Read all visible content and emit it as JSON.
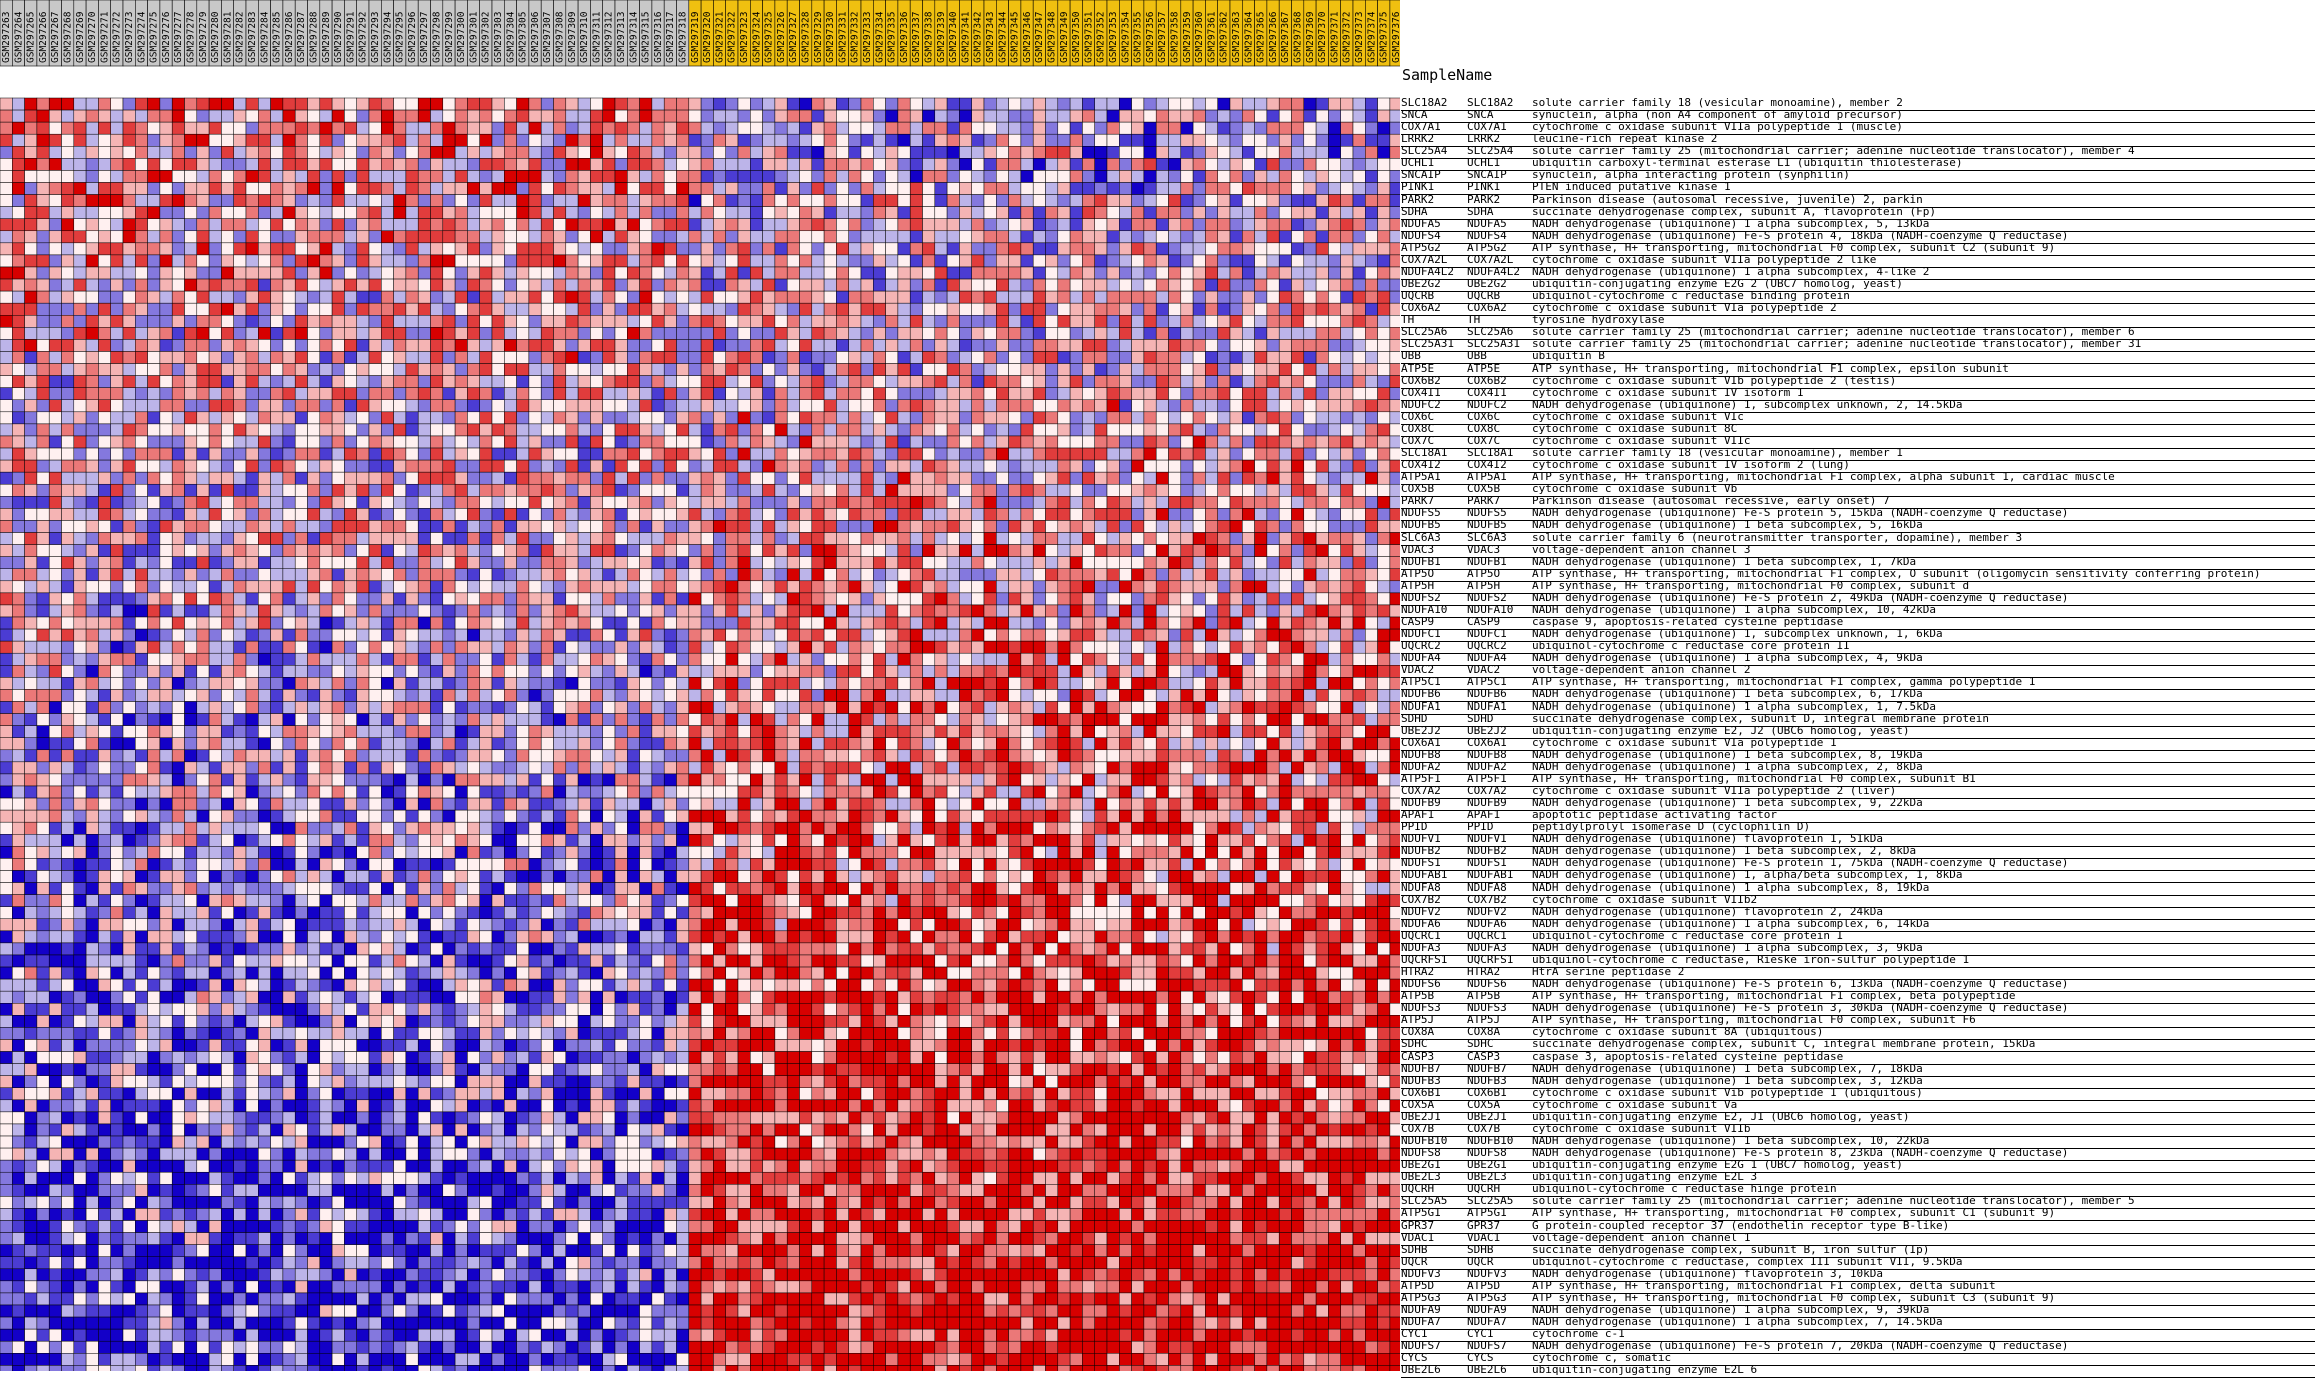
{
  "chart_data": {
    "type": "heatmap",
    "header_title": "SampleName",
    "group_colors": {
      "group1": "#c8c8c8",
      "group2": "#f0c010"
    },
    "color_scale": {
      "low": "#1a00c8",
      "mid": "#f4f0f4",
      "high": "#d80000"
    },
    "samples": [
      "GSM297263",
      "GSM297264",
      "GSM297265",
      "GSM297266",
      "GSM297267",
      "GSM297268",
      "GSM297269",
      "GSM297270",
      "GSM297271",
      "GSM297272",
      "GSM297273",
      "GSM297274",
      "GSM297275",
      "GSM297276",
      "GSM297277",
      "GSM297278",
      "GSM297279",
      "GSM297280",
      "GSM297281",
      "GSM297282",
      "GSM297283",
      "GSM297284",
      "GSM297285",
      "GSM297286",
      "GSM297287",
      "GSM297288",
      "GSM297289",
      "GSM297290",
      "GSM297291",
      "GSM297292",
      "GSM297293",
      "GSM297294",
      "GSM297295",
      "GSM297296",
      "GSM297297",
      "GSM297298",
      "GSM297299",
      "GSM297300",
      "GSM297301",
      "GSM297302",
      "GSM297303",
      "GSM297304",
      "GSM297305",
      "GSM297306",
      "GSM297307",
      "GSM297308",
      "GSM297309",
      "GSM297310",
      "GSM297311",
      "GSM297312",
      "GSM297313",
      "GSM297314",
      "GSM297315",
      "GSM297316",
      "GSM297317",
      "GSM297318",
      "GSM297319",
      "GSM297320",
      "GSM297321",
      "GSM297322",
      "GSM297323",
      "GSM297324",
      "GSM297325",
      "GSM297326",
      "GSM297327",
      "GSM297328",
      "GSM297329",
      "GSM297330",
      "GSM297331",
      "GSM297332",
      "GSM297333",
      "GSM297334",
      "GSM297335",
      "GSM297336",
      "GSM297337",
      "GSM297338",
      "GSM297339",
      "GSM297340",
      "GSM297341",
      "GSM297342",
      "GSM297343",
      "GSM297344",
      "GSM297345",
      "GSM297346",
      "GSM297347",
      "GSM297348",
      "GSM297349",
      "GSM297350",
      "GSM297351",
      "GSM297352",
      "GSM297353",
      "GSM297354",
      "GSM297355",
      "GSM297356",
      "GSM297357",
      "GSM297358",
      "GSM297359",
      "GSM297360",
      "GSM297361",
      "GSM297362",
      "GSM297363",
      "GSM297364",
      "GSM297365",
      "GSM297366",
      "GSM297367",
      "GSM297368",
      "GSM297369",
      "GSM297370",
      "GSM297371",
      "GSM297372",
      "GSM297373",
      "GSM297374",
      "GSM297375",
      "GSM297376"
    ],
    "group_split_index": 56,
    "genes": [
      [
        "SLC18A2",
        "SLC18A2",
        "solute carrier family 18 (vesicular monoamine), member 2"
      ],
      [
        "SNCA",
        "SNCA",
        "synuclein, alpha (non A4 component of amyloid precursor)"
      ],
      [
        "COX7A1",
        "COX7A1",
        "cytochrome c oxidase subunit VIIa polypeptide 1 (muscle)"
      ],
      [
        "LRRK2",
        "LRRK2",
        "leucine-rich repeat kinase 2"
      ],
      [
        "SLC25A4",
        "SLC25A4",
        "solute carrier family 25 (mitochondrial carrier; adenine nucleotide translocator), member 4"
      ],
      [
        "UCHL1",
        "UCHL1",
        "ubiquitin carboxyl-terminal esterase L1 (ubiquitin thiolesterase)"
      ],
      [
        "SNCAIP",
        "SNCAIP",
        "synuclein, alpha interacting protein (synphilin)"
      ],
      [
        "PINK1",
        "PINK1",
        "PTEN induced putative kinase 1"
      ],
      [
        "PARK2",
        "PARK2",
        "Parkinson disease (autosomal recessive, juvenile) 2, parkin"
      ],
      [
        "SDHA",
        "SDHA",
        "succinate dehydrogenase complex, subunit A, flavoprotein (Fp)"
      ],
      [
        "NDUFA5",
        "NDUFA5",
        "NADH dehydrogenase (ubiquinone) 1 alpha subcomplex, 5, 13kDa"
      ],
      [
        "NDUFS4",
        "NDUFS4",
        "NADH dehydrogenase (ubiquinone) Fe-S protein 4, 18kDa (NADH-coenzyme Q reductase)"
      ],
      [
        "ATP5G2",
        "ATP5G2",
        "ATP synthase, H+ transporting, mitochondrial F0 complex, subunit C2 (subunit 9)"
      ],
      [
        "COX7A2L",
        "COX7A2L",
        "cytochrome c oxidase subunit VIIa polypeptide 2 like"
      ],
      [
        "NDUFA4L2",
        "NDUFA4L2",
        "NADH dehydrogenase (ubiquinone) 1 alpha subcomplex, 4-like 2"
      ],
      [
        "UBE2G2",
        "UBE2G2",
        "ubiquitin-conjugating enzyme E2G 2 (UBC7 homolog, yeast)"
      ],
      [
        "UQCRB",
        "UQCRB",
        "ubiquinol-cytochrome c reductase binding protein"
      ],
      [
        "COX6A2",
        "COX6A2",
        "cytochrome c oxidase subunit VIa polypeptide 2"
      ],
      [
        "TH",
        "TH",
        "tyrosine hydroxylase"
      ],
      [
        "SLC25A6",
        "SLC25A6",
        "solute carrier family 25 (mitochondrial carrier; adenine nucleotide translocator), member 6"
      ],
      [
        "SLC25A31",
        "SLC25A31",
        "solute carrier family 25 (mitochondrial carrier; adenine nucleotide translocator), member 31"
      ],
      [
        "UBB",
        "UBB",
        "ubiquitin B"
      ],
      [
        "ATP5E",
        "ATP5E",
        "ATP synthase, H+ transporting, mitochondrial F1 complex, epsilon subunit"
      ],
      [
        "COX6B2",
        "COX6B2",
        "cytochrome c oxidase subunit VIb polypeptide 2 (testis)"
      ],
      [
        "COX4I1",
        "COX4I1",
        "cytochrome c oxidase subunit IV isoform 1"
      ],
      [
        "NDUFC2",
        "NDUFC2",
        "NADH dehydrogenase (ubiquinone) 1, subcomplex unknown, 2, 14.5kDa"
      ],
      [
        "COX6C",
        "COX6C",
        "cytochrome c oxidase subunit VIc"
      ],
      [
        "COX8C",
        "COX8C",
        "cytochrome c oxidase subunit 8C"
      ],
      [
        "COX7C",
        "COX7C",
        "cytochrome c oxidase subunit VIIc"
      ],
      [
        "SLC18A1",
        "SLC18A1",
        "solute carrier family 18 (vesicular monoamine), member 1"
      ],
      [
        "COX4I2",
        "COX4I2",
        "cytochrome c oxidase subunit IV isoform 2 (lung)"
      ],
      [
        "ATP5A1",
        "ATP5A1",
        "ATP synthase, H+ transporting, mitochondrial F1 complex, alpha subunit 1, cardiac muscle"
      ],
      [
        "COX5B",
        "COX5B",
        "cytochrome c oxidase subunit Vb"
      ],
      [
        "PARK7",
        "PARK7",
        "Parkinson disease (autosomal recessive, early onset) 7"
      ],
      [
        "NDUFS5",
        "NDUFS5",
        "NADH dehydrogenase (ubiquinone) Fe-S protein 5, 15kDa (NADH-coenzyme Q reductase)"
      ],
      [
        "NDUFB5",
        "NDUFB5",
        "NADH dehydrogenase (ubiquinone) 1 beta subcomplex, 5, 16kDa"
      ],
      [
        "SLC6A3",
        "SLC6A3",
        "solute carrier family 6 (neurotransmitter transporter, dopamine), member 3"
      ],
      [
        "VDAC3",
        "VDAC3",
        "voltage-dependent anion channel 3"
      ],
      [
        "NDUFB1",
        "NDUFB1",
        "NADH dehydrogenase (ubiquinone) 1 beta subcomplex, 1, 7kDa"
      ],
      [
        "ATP5O",
        "ATP5O",
        "ATP synthase, H+ transporting, mitochondrial F1 complex, O subunit (oligomycin sensitivity conferring protein)"
      ],
      [
        "ATP5H",
        "ATP5H",
        "ATP synthase, H+ transporting, mitochondrial F0 complex, subunit d"
      ],
      [
        "NDUFS2",
        "NDUFS2",
        "NADH dehydrogenase (ubiquinone) Fe-S protein 2, 49kDa (NADH-coenzyme Q reductase)"
      ],
      [
        "NDUFA10",
        "NDUFA10",
        "NADH dehydrogenase (ubiquinone) 1 alpha subcomplex, 10, 42kDa"
      ],
      [
        "CASP9",
        "CASP9",
        "caspase 9, apoptosis-related cysteine peptidase"
      ],
      [
        "NDUFC1",
        "NDUFC1",
        "NADH dehydrogenase (ubiquinone) 1, subcomplex unknown, 1, 6kDa"
      ],
      [
        "UQCRC2",
        "UQCRC2",
        "ubiquinol-cytochrome c reductase core protein II"
      ],
      [
        "NDUFA4",
        "NDUFA4",
        "NADH dehydrogenase (ubiquinone) 1 alpha subcomplex, 4, 9kDa"
      ],
      [
        "VDAC2",
        "VDAC2",
        "voltage-dependent anion channel 2"
      ],
      [
        "ATP5C1",
        "ATP5C1",
        "ATP synthase, H+ transporting, mitochondrial F1 complex, gamma polypeptide 1"
      ],
      [
        "NDUFB6",
        "NDUFB6",
        "NADH dehydrogenase (ubiquinone) 1 beta subcomplex, 6, 17kDa"
      ],
      [
        "NDUFA1",
        "NDUFA1",
        "NADH dehydrogenase (ubiquinone) 1 alpha subcomplex, 1, 7.5kDa"
      ],
      [
        "SDHD",
        "SDHD",
        "succinate dehydrogenase complex, subunit D, integral membrane protein"
      ],
      [
        "UBE2J2",
        "UBE2J2",
        "ubiquitin-conjugating enzyme E2, J2 (UBC6 homolog, yeast)"
      ],
      [
        "COX6A1",
        "COX6A1",
        "cytochrome c oxidase subunit VIa polypeptide 1"
      ],
      [
        "NDUFB8",
        "NDUFB8",
        "NADH dehydrogenase (ubiquinone) 1 beta subcomplex, 8, 19kDa"
      ],
      [
        "NDUFA2",
        "NDUFA2",
        "NADH dehydrogenase (ubiquinone) 1 alpha subcomplex, 2, 8kDa"
      ],
      [
        "ATP5F1",
        "ATP5F1",
        "ATP synthase, H+ transporting, mitochondrial F0 complex, subunit B1"
      ],
      [
        "COX7A2",
        "COX7A2",
        "cytochrome c oxidase subunit VIIa polypeptide 2 (liver)"
      ],
      [
        "NDUFB9",
        "NDUFB9",
        "NADH dehydrogenase (ubiquinone) 1 beta subcomplex, 9, 22kDa"
      ],
      [
        "APAF1",
        "APAF1",
        "apoptotic peptidase activating factor"
      ],
      [
        "PPID",
        "PPID",
        "peptidylprolyl isomerase D (cyclophilin D)"
      ],
      [
        "NDUFV1",
        "NDUFV1",
        "NADH dehydrogenase (ubiquinone) flavoprotein 1, 51kDa"
      ],
      [
        "NDUFB2",
        "NDUFB2",
        "NADH dehydrogenase (ubiquinone) 1 beta subcomplex, 2, 8kDa"
      ],
      [
        "NDUFS1",
        "NDUFS1",
        "NADH dehydrogenase (ubiquinone) Fe-S protein 1, 75kDa (NADH-coenzyme Q reductase)"
      ],
      [
        "NDUFAB1",
        "NDUFAB1",
        "NADH dehydrogenase (ubiquinone) 1, alpha/beta subcomplex, 1, 8kDa"
      ],
      [
        "NDUFA8",
        "NDUFA8",
        "NADH dehydrogenase (ubiquinone) 1 alpha subcomplex, 8, 19kDa"
      ],
      [
        "COX7B2",
        "COX7B2",
        "cytochrome c oxidase subunit VIIb2"
      ],
      [
        "NDUFV2",
        "NDUFV2",
        "NADH dehydrogenase (ubiquinone) flavoprotein 2, 24kDa"
      ],
      [
        "NDUFA6",
        "NDUFA6",
        "NADH dehydrogenase (ubiquinone) 1 alpha subcomplex, 6, 14kDa"
      ],
      [
        "UQCRC1",
        "UQCRC1",
        "ubiquinol-cytochrome c reductase core protein I"
      ],
      [
        "NDUFA3",
        "NDUFA3",
        "NADH dehydrogenase (ubiquinone) 1 alpha subcomplex, 3, 9kDa"
      ],
      [
        "UQCRFS1",
        "UQCRFS1",
        "ubiquinol-cytochrome c reductase, Rieske iron-sulfur polypeptide 1"
      ],
      [
        "HTRA2",
        "HTRA2",
        "HtrA serine peptidase 2"
      ],
      [
        "NDUFS6",
        "NDUFS6",
        "NADH dehydrogenase (ubiquinone) Fe-S protein 6, 13kDa (NADH-coenzyme Q reductase)"
      ],
      [
        "ATP5B",
        "ATP5B",
        "ATP synthase, H+ transporting, mitochondrial F1 complex, beta polypeptide"
      ],
      [
        "NDUFS3",
        "NDUFS3",
        "NADH dehydrogenase (ubiquinone) Fe-S protein 3, 30kDa (NADH-coenzyme Q reductase)"
      ],
      [
        "ATP5J",
        "ATP5J",
        "ATP synthase, H+ transporting, mitochondrial F0 complex, subunit F6"
      ],
      [
        "COX8A",
        "COX8A",
        "cytochrome c oxidase subunit 8A (ubiquitous)"
      ],
      [
        "SDHC",
        "SDHC",
        "succinate dehydrogenase complex, subunit C, integral membrane protein, 15kDa"
      ],
      [
        "CASP3",
        "CASP3",
        "caspase 3, apoptosis-related cysteine peptidase"
      ],
      [
        "NDUFB7",
        "NDUFB7",
        "NADH dehydrogenase (ubiquinone) 1 beta subcomplex, 7, 18kDa"
      ],
      [
        "NDUFB3",
        "NDUFB3",
        "NADH dehydrogenase (ubiquinone) 1 beta subcomplex, 3, 12kDa"
      ],
      [
        "COX6B1",
        "COX6B1",
        "cytochrome c oxidase subunit Vib polypeptide 1 (ubiquitous)"
      ],
      [
        "COX5A",
        "COX5A",
        "cytochrome c oxidase subunit Va"
      ],
      [
        "UBE2J1",
        "UBE2J1",
        "ubiquitin-conjugating enzyme E2, J1 (UBC6 homolog, yeast)"
      ],
      [
        "COX7B",
        "COX7B",
        "cytochrome c oxidase subunit VIIb"
      ],
      [
        "NDUFB10",
        "NDUFB10",
        "NADH dehydrogenase (ubiquinone) 1 beta subcomplex, 10, 22kDa"
      ],
      [
        "NDUFS8",
        "NDUFS8",
        "NADH dehydrogenase (ubiquinone) Fe-S protein 8, 23kDa (NADH-coenzyme Q reductase)"
      ],
      [
        "UBE2G1",
        "UBE2G1",
        "ubiquitin-conjugating enzyme E2G 1 (UBC7 homolog, yeast)"
      ],
      [
        "UBE2L3",
        "UBE2L3",
        "ubiquitin-conjugating enzyme E2L 3"
      ],
      [
        "UQCRH",
        "UQCRH",
        "ubiquinol-cytochrome c reductase hinge protein"
      ],
      [
        "SLC25A5",
        "SLC25A5",
        "solute carrier family 25 (mitochondrial carrier; adenine nucleotide translocator), member 5"
      ],
      [
        "ATP5G1",
        "ATP5G1",
        "ATP synthase, H+ transporting, mitochondrial F0 complex, subunit C1 (subunit 9)"
      ],
      [
        "GPR37",
        "GPR37",
        "G protein-coupled receptor 37 (endothelin receptor type B-like)"
      ],
      [
        "VDAC1",
        "VDAC1",
        "voltage-dependent anion channel 1"
      ],
      [
        "SDHB",
        "SDHB",
        "succinate dehydrogenase complex, subunit B, iron sulfur (Ip)"
      ],
      [
        "UQCR",
        "UQCR",
        "ubiquinol-cytochrome c reductase, complex III subunit VII, 9.5kDa"
      ],
      [
        "NDUFV3",
        "NDUFV3",
        "NADH dehydrogenase (ubiquinone) flavoprotein 3, 10kDa"
      ],
      [
        "ATP5D",
        "ATP5D",
        "ATP synthase, H+ transporting, mitochondrial F1 complex, delta subunit"
      ],
      [
        "ATP5G3",
        "ATP5G3",
        "ATP synthase, H+ transporting, mitochondrial F0 complex, subunit C3 (subunit 9)"
      ],
      [
        "NDUFA9",
        "NDUFA9",
        "NADH dehydrogenase (ubiquinone) 1 alpha subcomplex, 9, 39kDa"
      ],
      [
        "NDUFA7",
        "NDUFA7",
        "NADH dehydrogenase (ubiquinone) 1 alpha subcomplex, 7, 14.5kDa"
      ],
      [
        "CYC1",
        "CYC1",
        "cytochrome c-1"
      ],
      [
        "NDUFS7",
        "NDUFS7",
        "NADH dehydrogenase (ubiquinone) Fe-S protein 7, 20kDa (NADH-coenzyme Q reductase)"
      ],
      [
        "CYCS",
        "CYCS",
        "cytochrome c, somatic"
      ],
      [
        "UBE2L6",
        "UBE2L6",
        "ubiquitin-conjugating enzyme E2L 6"
      ]
    ]
  }
}
